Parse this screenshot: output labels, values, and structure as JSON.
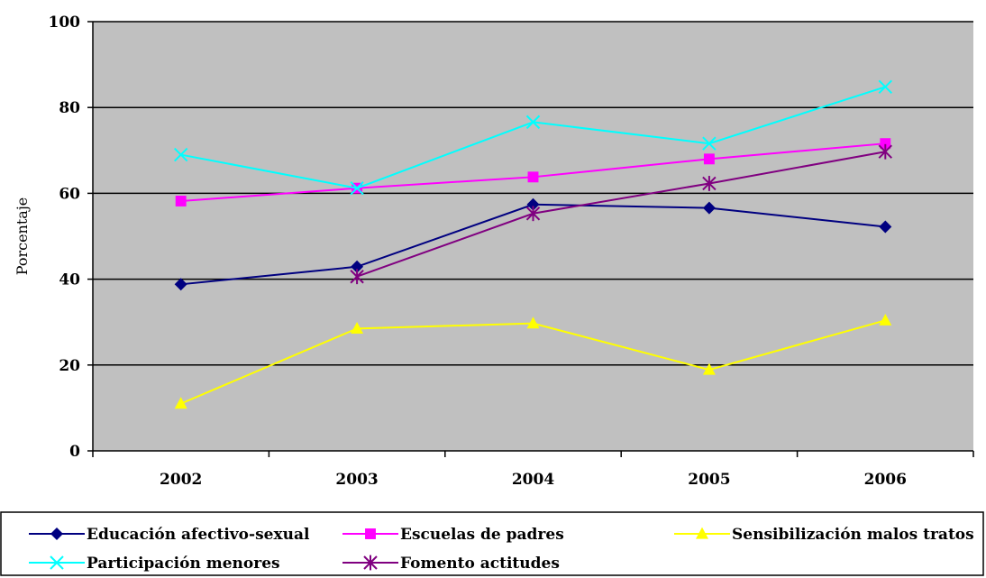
{
  "chart_data": {
    "type": "line",
    "title": "",
    "xlabel": "",
    "ylabel": "Porcentaje",
    "categories": [
      "2002",
      "2003",
      "2004",
      "2005",
      "2006"
    ],
    "ylim": [
      0,
      100
    ],
    "yticks": [
      "0",
      "20",
      "40",
      "60",
      "80",
      "100"
    ],
    "grid": true,
    "plot_background": "#c0c0c0",
    "legend_position": "bottom",
    "series": [
      {
        "name": "Educación afectivo-sexual",
        "color": "#000080",
        "marker": "diamond",
        "values": [
          38.8,
          42.9,
          57.4,
          56.6,
          52.2
        ]
      },
      {
        "name": "Escuelas de padres",
        "color": "#ff00ff",
        "marker": "square",
        "values": [
          58.2,
          61.2,
          63.8,
          68.0,
          71.6
        ]
      },
      {
        "name": "Sensibilización malos tratos",
        "color": "#ffff00",
        "marker": "triangle",
        "values": [
          11.0,
          28.5,
          29.7,
          18.9,
          30.4
        ]
      },
      {
        "name": "Participación menores",
        "color": "#00ffff",
        "marker": "x",
        "values": [
          69.0,
          61.2,
          76.6,
          71.6,
          84.8
        ]
      },
      {
        "name": "Fomento actitudes",
        "color": "#800080",
        "marker": "star",
        "values": [
          null,
          40.6,
          55.3,
          62.3,
          69.7
        ]
      }
    ]
  }
}
